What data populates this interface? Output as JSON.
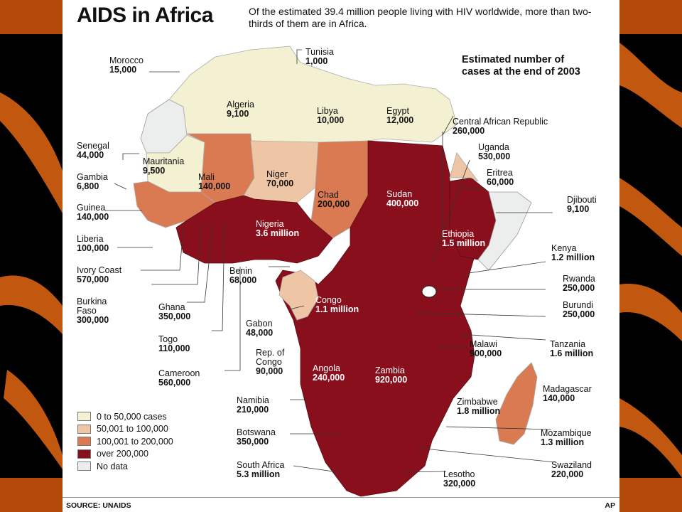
{
  "title": "AIDS in Africa",
  "subtitle": "Of the estimated 39.4 million people living with HIV worldwide, more than two-thirds of them are in Africa.",
  "estimate_heading_line1": "Estimated number of",
  "estimate_heading_line2": "cases at the end of 2003",
  "colors": {
    "lt50k": "#f4f1d2",
    "k50to100": "#eec5a5",
    "k100to200": "#d97a52",
    "over200k": "#8a0f1d",
    "nodata": "#eceded"
  },
  "legend": [
    {
      "label": "0 to 50,000 cases",
      "color": "#f4f1d2"
    },
    {
      "label": "50,001 to 100,000",
      "color": "#eec5a5"
    },
    {
      "label": "100,001 to 200,000",
      "color": "#d97a52"
    },
    {
      "label": "over 200,000",
      "color": "#8a0f1d"
    },
    {
      "label": "No data",
      "color": "#eceded"
    }
  ],
  "countries": {
    "morocco": {
      "name": "Morocco",
      "cases": "15,000"
    },
    "tunisia": {
      "name": "Tunisia",
      "cases": "1,000"
    },
    "algeria": {
      "name": "Algeria",
      "cases": "9,100"
    },
    "libya": {
      "name": "Libya",
      "cases": "10,000"
    },
    "egypt": {
      "name": "Egypt",
      "cases": "12,000"
    },
    "car": {
      "name": "Central African Republic",
      "cases": "260,000"
    },
    "uganda": {
      "name": "Uganda",
      "cases": "530,000"
    },
    "eritrea": {
      "name": "Eritrea",
      "cases": "60,000"
    },
    "djibouti": {
      "name": "Djibouti",
      "cases": "9,100"
    },
    "senegal": {
      "name": "Senegal",
      "cases": "44,000"
    },
    "mauritania": {
      "name": "Mauritania",
      "cases": "9,500"
    },
    "mali": {
      "name": "Mali",
      "cases": "140,000"
    },
    "niger": {
      "name": "Niger",
      "cases": "70,000"
    },
    "chad": {
      "name": "Chad",
      "cases": "200,000"
    },
    "sudan": {
      "name": "Sudan",
      "cases": "400,000"
    },
    "gambia": {
      "name": "Gambia",
      "cases": "6,800"
    },
    "guinea": {
      "name": "Guinea",
      "cases": "140,000"
    },
    "nigeria": {
      "name": "Nigeria",
      "cases": "3.6 million"
    },
    "ethiopia": {
      "name": "Ethiopia",
      "cases": "1.5 million"
    },
    "liberia": {
      "name": "Liberia",
      "cases": "100,000"
    },
    "kenya": {
      "name": "Kenya",
      "cases": "1.2 million"
    },
    "ivorycoast": {
      "name": "Ivory Coast",
      "cases": "570,000"
    },
    "benin": {
      "name": "Benin",
      "cases": "68,000"
    },
    "rwanda": {
      "name": "Rwanda",
      "cases": "250,000"
    },
    "burkinafaso": {
      "name_line1": "Burkina",
      "name_line2": "Faso",
      "cases": "300,000"
    },
    "ghana": {
      "name": "Ghana",
      "cases": "350,000"
    },
    "congo": {
      "name": "Congo",
      "cases": "1.1 million"
    },
    "burundi": {
      "name": "Burundi",
      "cases": "250,000"
    },
    "gabon": {
      "name": "Gabon",
      "cases": "48,000"
    },
    "togo": {
      "name": "Togo",
      "cases": "110,000"
    },
    "repcongo": {
      "name_line1": "Rep. of",
      "name_line2": "Congo",
      "cases": "90,000"
    },
    "malawi": {
      "name": "Malawi",
      "cases": "900,000"
    },
    "tanzania": {
      "name": "Tanzania",
      "cases": "1.6 million"
    },
    "cameroon": {
      "name": "Cameroon",
      "cases": "560,000"
    },
    "angola": {
      "name": "Angola",
      "cases": "240,000"
    },
    "zambia": {
      "name": "Zambia",
      "cases": "920,000"
    },
    "madagascar": {
      "name": "Madagascar",
      "cases": "140,000"
    },
    "namibia": {
      "name": "Namibia",
      "cases": "210,000"
    },
    "zimbabwe": {
      "name": "Zimbabwe",
      "cases": "1.8 million"
    },
    "botswana": {
      "name": "Botswana",
      "cases": "350,000"
    },
    "mozambique": {
      "name": "Mozambique",
      "cases": "1.3 million"
    },
    "southafrica": {
      "name": "South Africa",
      "cases": "5.3 million"
    },
    "swaziland": {
      "name": "Swaziland",
      "cases": "220,000"
    },
    "lesotho": {
      "name": "Lesotho",
      "cases": "320,000"
    }
  },
  "source": "SOURCE: UNAIDS",
  "credit": "AP"
}
